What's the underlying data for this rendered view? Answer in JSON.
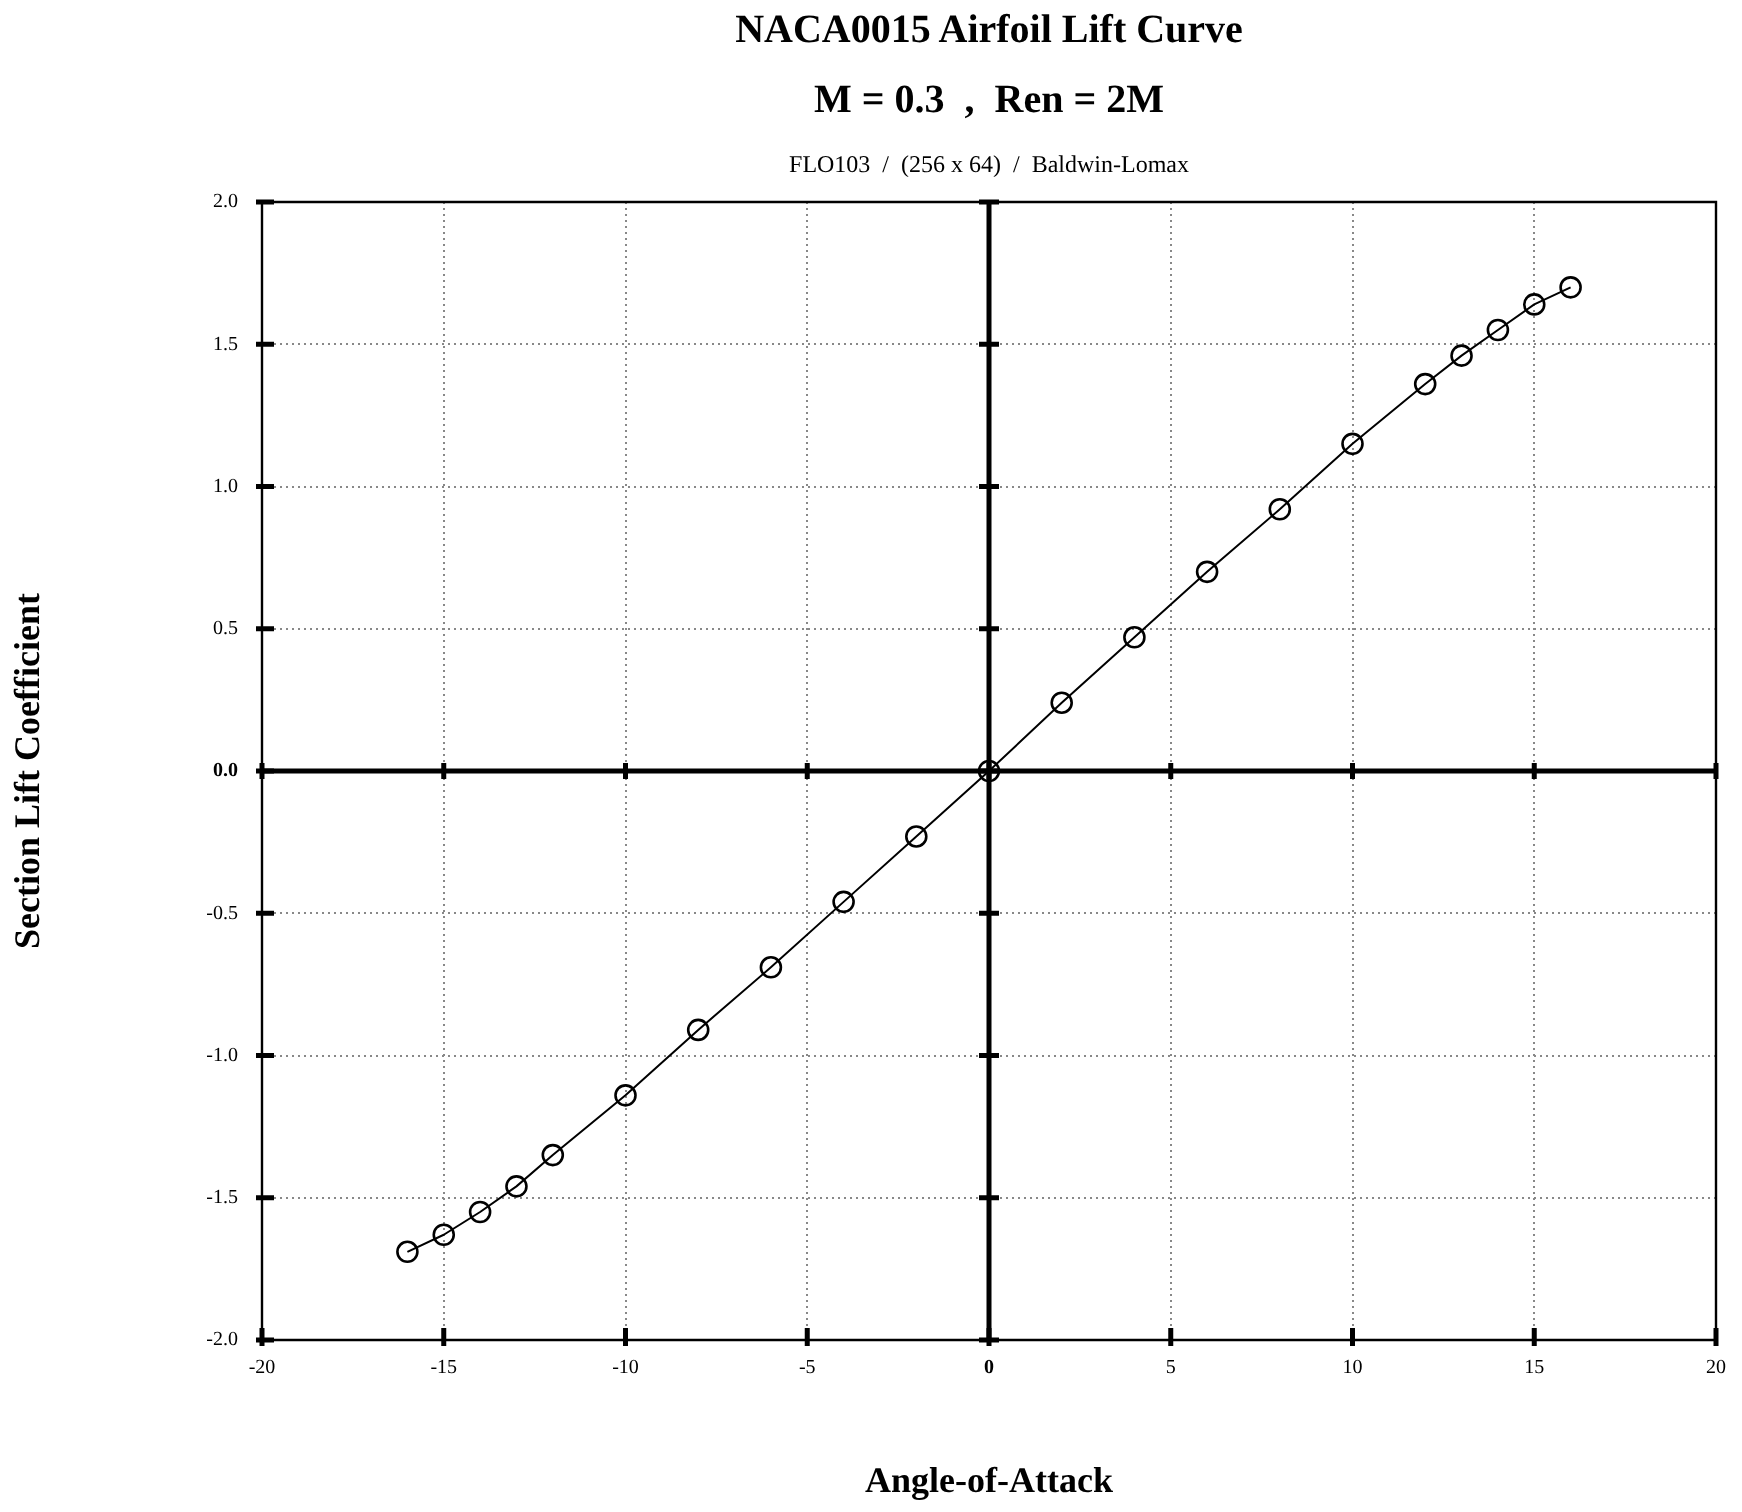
{
  "chart_data": {
    "type": "line",
    "title": "NACA0015 Airfoil Lift Curve",
    "subtitle": "M = 0.3  ,  Ren = 2M",
    "annotations": [
      "FLO103  /  (256 x 64)  /  Baldwin-Lomax"
    ],
    "xlabel": "Angle-of-Attack",
    "ylabel": "Section Lift Coefficient",
    "x": [
      -16,
      -15,
      -14,
      -13,
      -12,
      -10,
      -8,
      -6,
      -4,
      -2,
      0,
      2,
      4,
      6,
      8,
      10,
      12,
      13,
      14,
      15,
      16
    ],
    "series": [
      {
        "color": "#000000",
        "values": [
          -1.69,
          -1.63,
          -1.55,
          -1.46,
          -1.35,
          -1.14,
          -0.91,
          -0.69,
          -0.46,
          -0.23,
          0,
          0.24,
          0.47,
          0.7,
          0.92,
          1.15,
          1.36,
          1.46,
          1.55,
          1.64,
          1.7
        ]
      }
    ],
    "xlim": [
      -20,
      20
    ],
    "xticks": [
      -20,
      -15,
      -10,
      -5,
      0,
      5,
      10,
      15,
      20
    ],
    "ylim": [
      -2,
      2
    ],
    "yticks": [
      {
        "value": -2,
        "label": "-2.0"
      },
      {
        "value": -1.5,
        "label": "-1.5"
      },
      {
        "value": -1,
        "label": "-1.0"
      },
      {
        "value": -0.5,
        "label": "-0.5"
      },
      {
        "value": 0,
        "label": "0.0"
      },
      {
        "value": 0.5,
        "label": "0.5"
      },
      {
        "value": 1,
        "label": "1.0"
      },
      {
        "value": 1.5,
        "label": "1.5"
      },
      {
        "value": 2,
        "label": "2.0"
      }
    ],
    "grid": true,
    "marker": "circle",
    "line_style": "solid",
    "legend": false
  }
}
